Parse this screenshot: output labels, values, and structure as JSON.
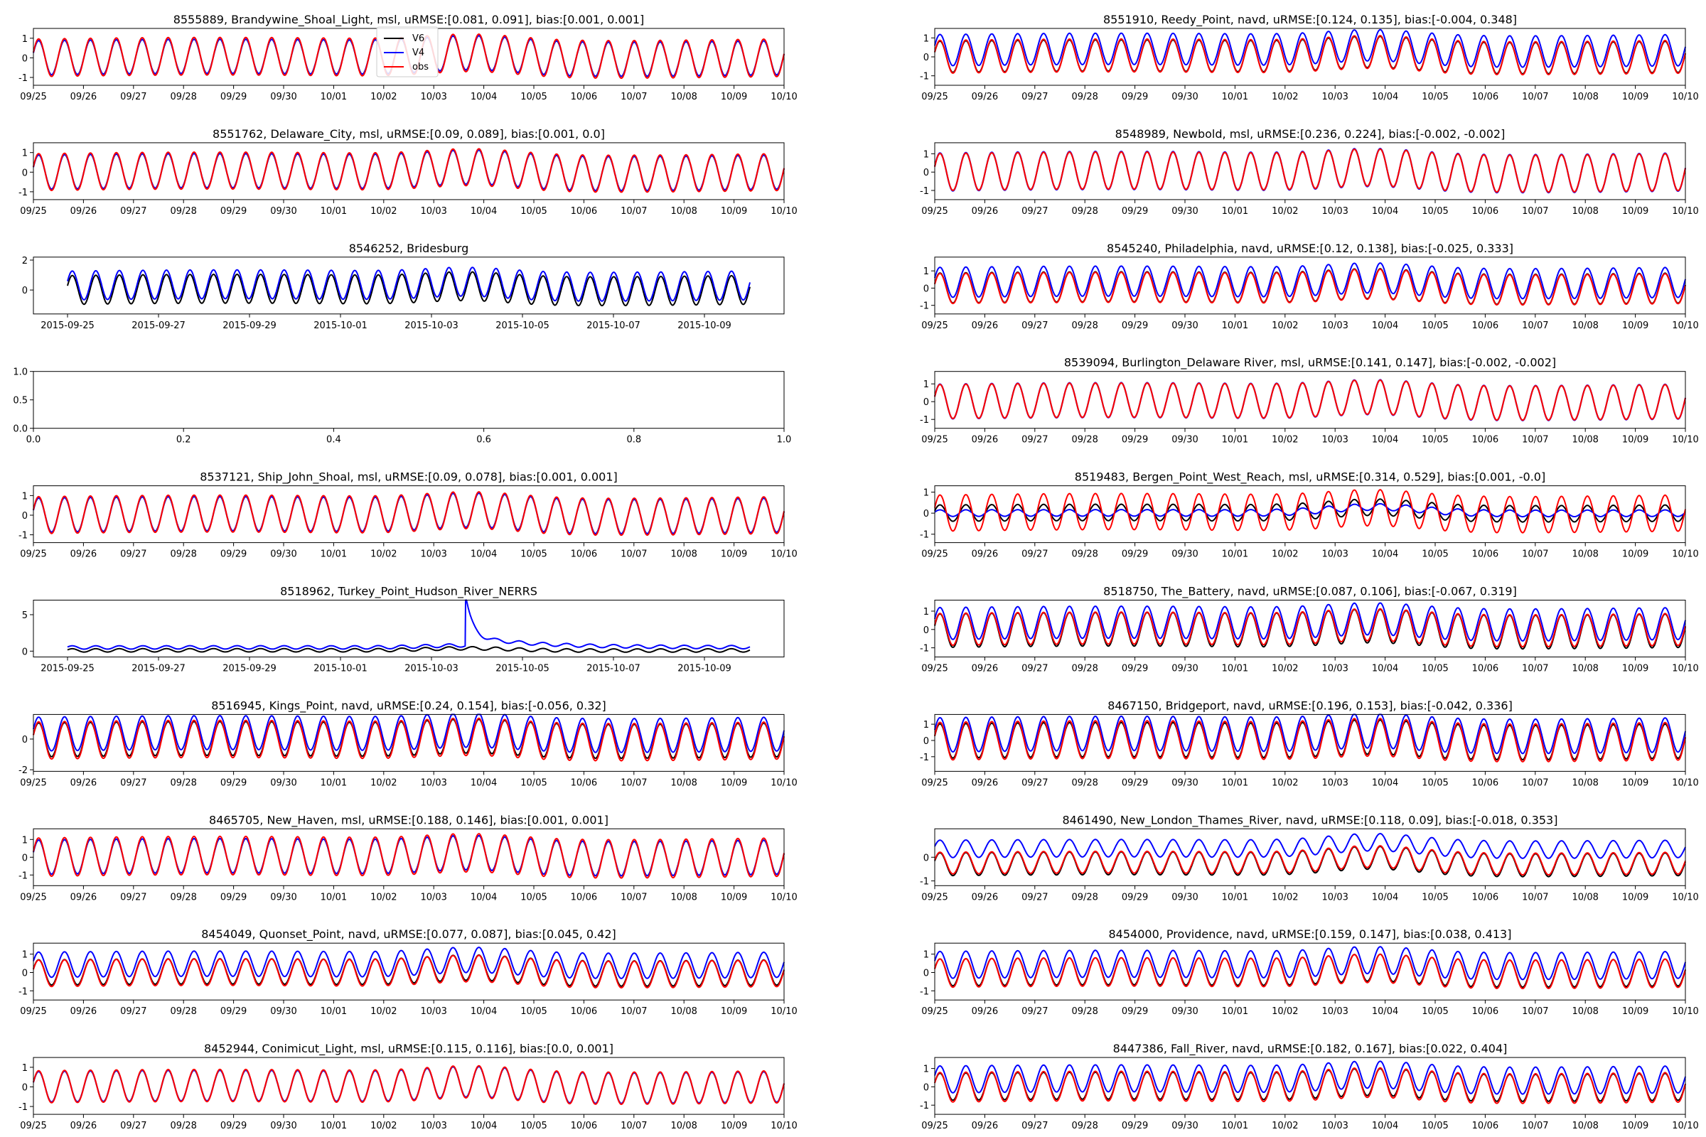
{
  "colors": {
    "V6": "#000000",
    "V4": "#0000ff",
    "obs": "#ff0000"
  },
  "legend": {
    "entries": [
      "V6",
      "V4",
      "obs"
    ],
    "panel": 0,
    "placement": "upper-center"
  },
  "chart_data": [
    {
      "type": "line",
      "title": "8555889, Brandywine_Shoal_Light, msl, uRMSE:[0.081, 0.091], bias:[0.001, 0.001]",
      "ylim": [
        -1.4,
        1.5
      ],
      "yticks": [
        1,
        0,
        -1
      ],
      "xticks": [
        "09/25",
        "09/26",
        "09/27",
        "09/28",
        "09/29",
        "09/30",
        "10/01",
        "10/02",
        "10/03",
        "10/04",
        "10/05",
        "10/06",
        "10/07",
        "10/08",
        "10/09",
        "10/10"
      ],
      "xlim": [
        0,
        15
      ],
      "t_range": [
        0,
        15
      ],
      "model": {
        "amp": 0.95,
        "v6_off": 0,
        "v4_off": 0,
        "obs_off": 0,
        "v6_scale": 1,
        "v4_scale": 1,
        "obs_scale": 1.1,
        "surge_day": 8.8,
        "surge_amp": 0.3
      },
      "series": [
        {
          "name": "V6"
        },
        {
          "name": "V4"
        },
        {
          "name": "obs"
        }
      ]
    },
    {
      "type": "line",
      "title": "8551910, Reedy_Point, navd, uRMSE:[0.124, 0.135], bias:[-0.004, 0.348]",
      "ylim": [
        -1.5,
        1.5
      ],
      "yticks": [
        1,
        0,
        -1
      ],
      "xticks": [
        "09/25",
        "09/26",
        "09/27",
        "09/28",
        "09/29",
        "09/30",
        "10/01",
        "10/02",
        "10/03",
        "10/04",
        "10/05",
        "10/06",
        "10/07",
        "10/08",
        "10/09",
        "10/10"
      ],
      "xlim": [
        0,
        15
      ],
      "t_range": [
        0,
        15
      ],
      "model": {
        "amp": 0.9,
        "v6_off": 0,
        "v4_off": 0.35,
        "obs_off": 0,
        "v6_scale": 1,
        "v4_scale": 1,
        "obs_scale": 1.05,
        "surge_day": 8.8,
        "surge_amp": 0.3
      },
      "series": [
        {
          "name": "V6"
        },
        {
          "name": "V4"
        },
        {
          "name": "obs"
        }
      ]
    },
    {
      "type": "line",
      "title": "8551762, Delaware_City, msl, uRMSE:[0.09, 0.089], bias:[0.001, 0.0]",
      "ylim": [
        -1.4,
        1.5
      ],
      "yticks": [
        1,
        0,
        -1
      ],
      "xticks": [
        "09/25",
        "09/26",
        "09/27",
        "09/28",
        "09/29",
        "09/30",
        "10/01",
        "10/02",
        "10/03",
        "10/04",
        "10/05",
        "10/06",
        "10/07",
        "10/08",
        "10/09",
        "10/10"
      ],
      "xlim": [
        0,
        15
      ],
      "t_range": [
        0,
        15
      ],
      "model": {
        "amp": 0.95,
        "v6_off": 0,
        "v4_off": 0,
        "obs_off": 0,
        "v6_scale": 1,
        "v4_scale": 1,
        "obs_scale": 1.08,
        "surge_day": 8.8,
        "surge_amp": 0.3
      },
      "series": [
        {
          "name": "V6"
        },
        {
          "name": "V4"
        },
        {
          "name": "obs"
        }
      ]
    },
    {
      "type": "line",
      "title": "8548989, Newbold, msl, uRMSE:[0.236, 0.224], bias:[-0.002, -0.002]",
      "ylim": [
        -1.5,
        1.6
      ],
      "yticks": [
        1,
        0,
        -1
      ],
      "xticks": [
        "09/25",
        "09/26",
        "09/27",
        "09/28",
        "09/29",
        "09/30",
        "10/01",
        "10/02",
        "10/03",
        "10/04",
        "10/05",
        "10/06",
        "10/07",
        "10/08",
        "10/09",
        "10/10"
      ],
      "xlim": [
        0,
        15
      ],
      "t_range": [
        0,
        15
      ],
      "model": {
        "amp": 1.1,
        "v6_off": 0,
        "v4_off": 0,
        "obs_off": 0,
        "v6_scale": 1,
        "v4_scale": 1.03,
        "obs_scale": 1,
        "surge_day": 8.8,
        "surge_amp": 0.3
      },
      "series": [
        {
          "name": "V6"
        },
        {
          "name": "V4"
        },
        {
          "name": "obs"
        }
      ]
    },
    {
      "type": "line",
      "title": "8546252, Bridesburg",
      "ylim": [
        -1.6,
        2.2
      ],
      "yticks": [
        2,
        0
      ],
      "xticks": [
        "2015-09-25",
        "2015-09-27",
        "2015-09-29",
        "2015-10-01",
        "2015-10-03",
        "2015-10-05",
        "2015-10-07",
        "2015-10-09"
      ],
      "xtick_pos": [
        0,
        2,
        4,
        6,
        8,
        10,
        12,
        14
      ],
      "xlim": [
        -0.75,
        15.75
      ],
      "t_range": [
        0,
        15
      ],
      "model": {
        "amp": 1.05,
        "v6_off": 0,
        "v4_off": 0.3,
        "obs_off": 0,
        "v6_scale": 1,
        "v4_scale": 1,
        "obs_scale": 1,
        "surge_day": 8.8,
        "surge_amp": 0.3
      },
      "series": [
        {
          "name": "V6"
        },
        {
          "name": "V4"
        }
      ]
    },
    {
      "type": "line",
      "title": "8545240, Philadelphia, navd, uRMSE:[0.12, 0.138], bias:[-0.025, 0.333]",
      "ylim": [
        -1.5,
        1.8
      ],
      "yticks": [
        1,
        0,
        -1
      ],
      "xticks": [
        "09/25",
        "09/26",
        "09/27",
        "09/28",
        "09/29",
        "09/30",
        "10/01",
        "10/02",
        "10/03",
        "10/04",
        "10/05",
        "10/06",
        "10/07",
        "10/08",
        "10/09",
        "10/10"
      ],
      "xlim": [
        0,
        15
      ],
      "t_range": [
        0,
        15
      ],
      "model": {
        "amp": 0.95,
        "v6_off": 0,
        "v4_off": 0.33,
        "obs_off": -0.03,
        "v6_scale": 1,
        "v4_scale": 1,
        "obs_scale": 1,
        "surge_day": 8.8,
        "surge_amp": 0.3
      },
      "series": [
        {
          "name": "V6"
        },
        {
          "name": "V4"
        },
        {
          "name": "obs"
        }
      ]
    },
    {
      "type": "empty",
      "ylim": [
        0,
        1
      ],
      "yticks": [
        "0.0",
        "0.5",
        "1.0"
      ],
      "xlim": [
        0,
        1
      ],
      "xticks": [
        "0.0",
        "0.2",
        "0.4",
        "0.6",
        "0.8",
        "1.0"
      ]
    },
    {
      "type": "line",
      "title": "8539094, Burlington_Delaware River, msl, uRMSE:[0.141, 0.147], bias:[-0.002, -0.002]",
      "ylim": [
        -1.5,
        1.7
      ],
      "yticks": [
        1,
        0,
        -1
      ],
      "xticks": [
        "09/25",
        "09/26",
        "09/27",
        "09/28",
        "09/29",
        "09/30",
        "10/01",
        "10/02",
        "10/03",
        "10/04",
        "10/05",
        "10/06",
        "10/07",
        "10/08",
        "10/09",
        "10/10"
      ],
      "xlim": [
        0,
        15
      ],
      "t_range": [
        0,
        15
      ],
      "model": {
        "amp": 1.05,
        "v6_off": 0,
        "v4_off": 0,
        "obs_off": 0,
        "v6_scale": 1,
        "v4_scale": 1.02,
        "obs_scale": 1,
        "surge_day": 8.8,
        "surge_amp": 0.3
      },
      "series": [
        {
          "name": "V6"
        },
        {
          "name": "V4"
        },
        {
          "name": "obs"
        }
      ]
    },
    {
      "type": "line",
      "title": "8537121, Ship_John_Shoal, msl, uRMSE:[0.09, 0.078], bias:[0.001, 0.001]",
      "ylim": [
        -1.4,
        1.5
      ],
      "yticks": [
        1,
        0,
        -1
      ],
      "xticks": [
        "09/25",
        "09/26",
        "09/27",
        "09/28",
        "09/29",
        "09/30",
        "10/01",
        "10/02",
        "10/03",
        "10/04",
        "10/05",
        "10/06",
        "10/07",
        "10/08",
        "10/09",
        "10/10"
      ],
      "xlim": [
        0,
        15
      ],
      "t_range": [
        0,
        15
      ],
      "model": {
        "amp": 0.95,
        "v6_off": 0,
        "v4_off": 0,
        "obs_off": 0,
        "v6_scale": 1,
        "v4_scale": 1,
        "obs_scale": 1.08,
        "surge_day": 8.8,
        "surge_amp": 0.3
      },
      "series": [
        {
          "name": "V6"
        },
        {
          "name": "V4"
        },
        {
          "name": "obs"
        }
      ]
    },
    {
      "type": "line",
      "title": "8519483, Bergen_Point_West_Reach, msl, uRMSE:[0.314, 0.529], bias:[0.001, -0.0]",
      "ylim": [
        -1.4,
        1.3
      ],
      "yticks": [
        1,
        0,
        -1
      ],
      "xticks": [
        "09/25",
        "09/26",
        "09/27",
        "09/28",
        "09/29",
        "09/30",
        "10/01",
        "10/02",
        "10/03",
        "10/04",
        "10/05",
        "10/06",
        "10/07",
        "10/08",
        "10/09",
        "10/10"
      ],
      "xlim": [
        0,
        15
      ],
      "t_range": [
        0,
        15
      ],
      "model": {
        "amp": 0.85,
        "v6_off": 0,
        "v4_off": 0,
        "obs_off": 0,
        "v6_scale": 0.5,
        "v4_scale": 0.2,
        "obs_scale": 1.1,
        "surge_day": 8.8,
        "surge_amp": 0.3
      },
      "series": [
        {
          "name": "V6"
        },
        {
          "name": "V4"
        },
        {
          "name": "obs"
        }
      ]
    },
    {
      "type": "line",
      "title": "8518962, Turkey_Point_Hudson_River_NERRS",
      "ylim": [
        -0.8,
        7.0
      ],
      "yticks": [
        5,
        0
      ],
      "xticks": [
        "2015-09-25",
        "2015-09-27",
        "2015-09-29",
        "2015-10-01",
        "2015-10-03",
        "2015-10-05",
        "2015-10-07",
        "2015-10-09"
      ],
      "xtick_pos": [
        0,
        2,
        4,
        6,
        8,
        10,
        12,
        14
      ],
      "xlim": [
        -0.75,
        15.75
      ],
      "t_range": [
        0,
        15
      ],
      "model": {
        "amp": 0.25,
        "v6_off": 0.1,
        "v4_off": 0.5,
        "obs_off": 0,
        "v6_scale": 1,
        "v4_scale": 1,
        "obs_scale": 1,
        "surge_day": 8.8,
        "surge_amp": 0.3,
        "spike_day": 8.75,
        "spike_amp": 6.0
      },
      "series": [
        {
          "name": "V6"
        },
        {
          "name": "V4"
        }
      ]
    },
    {
      "type": "line",
      "title": "8518750, The_Battery, navd, uRMSE:[0.087, 0.106], bias:[-0.067, 0.319]",
      "ylim": [
        -1.5,
        1.6
      ],
      "yticks": [
        1,
        0,
        -1
      ],
      "xticks": [
        "09/25",
        "09/26",
        "09/27",
        "09/28",
        "09/29",
        "09/30",
        "10/01",
        "10/02",
        "10/03",
        "10/04",
        "10/05",
        "10/06",
        "10/07",
        "10/08",
        "10/09",
        "10/10"
      ],
      "xlim": [
        0,
        15
      ],
      "t_range": [
        0,
        15
      ],
      "model": {
        "amp": 0.95,
        "v6_off": -0.07,
        "v4_off": 0.32,
        "obs_off": 0,
        "v6_scale": 1.05,
        "v4_scale": 1,
        "obs_scale": 1,
        "surge_day": 8.8,
        "surge_amp": 0.3
      },
      "series": [
        {
          "name": "V6"
        },
        {
          "name": "V4"
        },
        {
          "name": "obs"
        }
      ]
    },
    {
      "type": "line",
      "title": "8516945, Kings_Point, navd, uRMSE:[0.24, 0.154], bias:[-0.056, 0.32]",
      "ylim": [
        -2.1,
        1.6
      ],
      "yticks": [
        0,
        -2
      ],
      "xticks": [
        "09/25",
        "09/26",
        "09/27",
        "09/28",
        "09/29",
        "09/30",
        "10/01",
        "10/02",
        "10/03",
        "10/04",
        "10/05",
        "10/06",
        "10/07",
        "10/08",
        "10/09",
        "10/10"
      ],
      "xlim": [
        0,
        15
      ],
      "t_range": [
        0,
        15
      ],
      "model": {
        "amp": 1.2,
        "v6_off": -0.06,
        "v4_off": 0.32,
        "obs_off": -0.1,
        "v6_scale": 1,
        "v4_scale": 1,
        "obs_scale": 1.1,
        "surge_day": 8.8,
        "surge_amp": 0.3
      },
      "series": [
        {
          "name": "V6"
        },
        {
          "name": "V4"
        },
        {
          "name": "obs"
        }
      ]
    },
    {
      "type": "line",
      "title": "8467150, Bridgeport, navd, uRMSE:[0.196, 0.153], bias:[-0.042, 0.336]",
      "ylim": [
        -1.9,
        1.6
      ],
      "yticks": [
        1,
        0,
        -1
      ],
      "xticks": [
        "09/25",
        "09/26",
        "09/27",
        "09/28",
        "09/29",
        "09/30",
        "10/01",
        "10/02",
        "10/03",
        "10/04",
        "10/05",
        "10/06",
        "10/07",
        "10/08",
        "10/09",
        "10/10"
      ],
      "xlim": [
        0,
        15
      ],
      "t_range": [
        0,
        15
      ],
      "model": {
        "amp": 1.15,
        "v6_off": -0.04,
        "v4_off": 0.34,
        "obs_off": -0.05,
        "v6_scale": 1,
        "v4_scale": 1,
        "obs_scale": 1.1,
        "surge_day": 8.8,
        "surge_amp": 0.3
      },
      "series": [
        {
          "name": "V6"
        },
        {
          "name": "V4"
        },
        {
          "name": "obs"
        }
      ]
    },
    {
      "type": "line",
      "title": "8465705, New_Haven, msl, uRMSE:[0.188, 0.146], bias:[0.001, 0.001]",
      "ylim": [
        -1.6,
        1.6
      ],
      "yticks": [
        1,
        0,
        -1
      ],
      "xticks": [
        "09/25",
        "09/26",
        "09/27",
        "09/28",
        "09/29",
        "09/30",
        "10/01",
        "10/02",
        "10/03",
        "10/04",
        "10/05",
        "10/06",
        "10/07",
        "10/08",
        "10/09",
        "10/10"
      ],
      "xlim": [
        0,
        15
      ],
      "t_range": [
        0,
        15
      ],
      "model": {
        "amp": 1.05,
        "v6_off": 0,
        "v4_off": 0,
        "obs_off": 0,
        "v6_scale": 1,
        "v4_scale": 1,
        "obs_scale": 1.12,
        "surge_day": 8.8,
        "surge_amp": 0.3
      },
      "series": [
        {
          "name": "V6"
        },
        {
          "name": "V4"
        },
        {
          "name": "obs"
        }
      ]
    },
    {
      "type": "line",
      "title": "8461490, New_London_Thames_River, navd, uRMSE:[0.118, 0.09], bias:[-0.018, 0.353]",
      "ylim": [
        -1.2,
        1.2
      ],
      "yticks": [
        0,
        -1
      ],
      "xticks": [
        "09/25",
        "09/26",
        "09/27",
        "09/28",
        "09/29",
        "09/30",
        "10/01",
        "10/02",
        "10/03",
        "10/04",
        "10/05",
        "10/06",
        "10/07",
        "10/08",
        "10/09",
        "10/10"
      ],
      "xlim": [
        0,
        15
      ],
      "t_range": [
        0,
        15
      ],
      "model": {
        "amp": 0.5,
        "v6_off": -0.3,
        "v4_off": 0.35,
        "obs_off": -0.25,
        "v6_scale": 1.05,
        "v4_scale": 0.8,
        "obs_scale": 1,
        "surge_day": 8.8,
        "surge_amp": 0.3
      },
      "series": [
        {
          "name": "V6"
        },
        {
          "name": "V4"
        },
        {
          "name": "obs"
        }
      ]
    },
    {
      "type": "line",
      "title": "8454049, Quonset_Point, navd, uRMSE:[0.077, 0.087], bias:[0.045, 0.42]",
      "ylim": [
        -1.5,
        1.6
      ],
      "yticks": [
        1,
        0,
        -1
      ],
      "xticks": [
        "09/25",
        "09/26",
        "09/27",
        "09/28",
        "09/29",
        "09/30",
        "10/01",
        "10/02",
        "10/03",
        "10/04",
        "10/05",
        "10/06",
        "10/07",
        "10/08",
        "10/09",
        "10/10"
      ],
      "xlim": [
        0,
        15
      ],
      "t_range": [
        0,
        15
      ],
      "model": {
        "amp": 0.75,
        "v6_off": 0,
        "v4_off": 0.42,
        "obs_off": -0.05,
        "v6_scale": 1,
        "v4_scale": 1,
        "obs_scale": 1.05,
        "surge_day": 8.8,
        "surge_amp": 0.3
      },
      "series": [
        {
          "name": "V6"
        },
        {
          "name": "V4"
        },
        {
          "name": "obs"
        }
      ]
    },
    {
      "type": "line",
      "title": "8454000, Providence, navd, uRMSE:[0.159, 0.147], bias:[0.038, 0.413]",
      "ylim": [
        -1.5,
        1.6
      ],
      "yticks": [
        1,
        0,
        -1
      ],
      "xticks": [
        "09/25",
        "09/26",
        "09/27",
        "09/28",
        "09/29",
        "09/30",
        "10/01",
        "10/02",
        "10/03",
        "10/04",
        "10/05",
        "10/06",
        "10/07",
        "10/08",
        "10/09",
        "10/10"
      ],
      "xlim": [
        0,
        15
      ],
      "t_range": [
        0,
        15
      ],
      "model": {
        "amp": 0.8,
        "v6_off": 0,
        "v4_off": 0.41,
        "obs_off": -0.04,
        "v6_scale": 1,
        "v4_scale": 1,
        "obs_scale": 1.05,
        "surge_day": 8.8,
        "surge_amp": 0.3
      },
      "series": [
        {
          "name": "V6"
        },
        {
          "name": "V4"
        },
        {
          "name": "obs"
        }
      ]
    },
    {
      "type": "line",
      "title": "8452944, Conimicut_Light, msl, uRMSE:[0.115, 0.116], bias:[0.0, 0.001]",
      "ylim": [
        -1.4,
        1.5
      ],
      "yticks": [
        1,
        0,
        -1
      ],
      "xticks": [
        "09/25",
        "09/26",
        "09/27",
        "09/28",
        "09/29",
        "09/30",
        "10/01",
        "10/02",
        "10/03",
        "10/04",
        "10/05",
        "10/06",
        "10/07",
        "10/08",
        "10/09",
        "10/10"
      ],
      "xlim": [
        0,
        15
      ],
      "t_range": [
        0,
        15
      ],
      "model": {
        "amp": 0.85,
        "v6_off": 0,
        "v4_off": 0,
        "obs_off": 0,
        "v6_scale": 1,
        "v4_scale": 1,
        "obs_scale": 1.05,
        "surge_day": 8.8,
        "surge_amp": 0.3
      },
      "series": [
        {
          "name": "V6"
        },
        {
          "name": "V4"
        },
        {
          "name": "obs"
        }
      ]
    },
    {
      "type": "line",
      "title": "8447386, Fall_River, navd, uRMSE:[0.182, 0.167], bias:[0.022, 0.404]",
      "ylim": [
        -1.5,
        1.6
      ],
      "yticks": [
        1,
        0,
        -1
      ],
      "xticks": [
        "09/25",
        "09/26",
        "09/27",
        "09/28",
        "09/29",
        "09/30",
        "10/01",
        "10/02",
        "10/03",
        "10/04",
        "10/05",
        "10/06",
        "10/07",
        "10/08",
        "10/09",
        "10/10"
      ],
      "xlim": [
        0,
        15
      ],
      "t_range": [
        0,
        15
      ],
      "model": {
        "amp": 0.8,
        "v6_off": 0,
        "v4_off": 0.4,
        "obs_off": -0.03,
        "v6_scale": 1,
        "v4_scale": 1,
        "obs_scale": 1.1,
        "surge_day": 8.8,
        "surge_amp": 0.3
      },
      "series": [
        {
          "name": "V6"
        },
        {
          "name": "V4"
        },
        {
          "name": "obs"
        }
      ]
    }
  ]
}
